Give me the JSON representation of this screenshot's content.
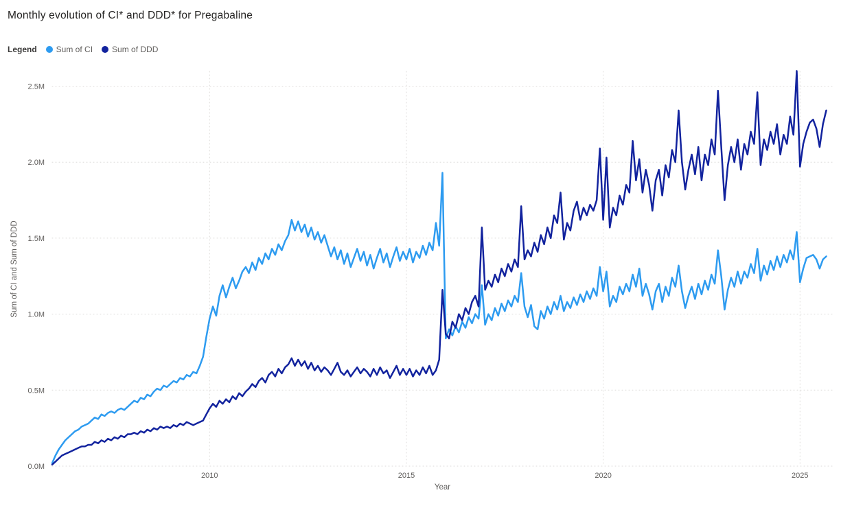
{
  "legend": {
    "title": "Legend"
  },
  "chart_data": {
    "type": "line",
    "title": "Monthly evolution of CI* and DDD* for Pregabaline",
    "xlabel": "Year",
    "ylabel": "Sum of CI and Sum of DDD",
    "value_unit": "millions",
    "x_start_year": 2006,
    "x_step_months": 1,
    "xlim": [
      2006,
      2025.9
    ],
    "ylim": [
      0,
      2.6
    ],
    "grid": "dotted",
    "legend_position": "top-left",
    "x_ticks": {
      "values": [
        2010,
        2015,
        2020,
        2025
      ],
      "labels": [
        "2010",
        "2015",
        "2020",
        "2025"
      ]
    },
    "y_ticks": {
      "values": [
        0,
        0.5,
        1.0,
        1.5,
        2.0,
        2.5
      ],
      "labels": [
        "0.0M",
        "0.5M",
        "1.0M",
        "1.5M",
        "2.0M",
        "2.5M"
      ]
    },
    "series": [
      {
        "name": "Sum of CI",
        "color": "#2D9BF0",
        "values": [
          0.02,
          0.07,
          0.11,
          0.14,
          0.17,
          0.19,
          0.21,
          0.23,
          0.24,
          0.26,
          0.27,
          0.28,
          0.3,
          0.32,
          0.31,
          0.34,
          0.33,
          0.35,
          0.36,
          0.35,
          0.37,
          0.38,
          0.37,
          0.39,
          0.41,
          0.43,
          0.42,
          0.45,
          0.44,
          0.47,
          0.46,
          0.49,
          0.51,
          0.5,
          0.53,
          0.52,
          0.54,
          0.56,
          0.55,
          0.58,
          0.57,
          0.6,
          0.59,
          0.62,
          0.61,
          0.66,
          0.72,
          0.85,
          0.97,
          1.05,
          0.99,
          1.12,
          1.19,
          1.11,
          1.18,
          1.24,
          1.17,
          1.22,
          1.28,
          1.31,
          1.27,
          1.34,
          1.29,
          1.37,
          1.33,
          1.4,
          1.36,
          1.43,
          1.39,
          1.46,
          1.42,
          1.48,
          1.52,
          1.62,
          1.55,
          1.61,
          1.54,
          1.59,
          1.51,
          1.57,
          1.49,
          1.54,
          1.47,
          1.52,
          1.45,
          1.38,
          1.44,
          1.36,
          1.42,
          1.33,
          1.4,
          1.31,
          1.37,
          1.43,
          1.35,
          1.41,
          1.32,
          1.39,
          1.3,
          1.37,
          1.43,
          1.34,
          1.4,
          1.31,
          1.38,
          1.44,
          1.35,
          1.41,
          1.36,
          1.43,
          1.34,
          1.41,
          1.37,
          1.45,
          1.39,
          1.47,
          1.42,
          1.6,
          1.45,
          1.93,
          0.84,
          0.9,
          0.86,
          0.92,
          0.88,
          0.95,
          0.91,
          0.98,
          0.94,
          1.0,
          0.97,
          1.19,
          0.93,
          1.0,
          0.96,
          1.04,
          0.99,
          1.07,
          1.02,
          1.09,
          1.05,
          1.12,
          1.08,
          1.27,
          1.05,
          0.98,
          1.06,
          0.92,
          0.9,
          1.02,
          0.97,
          1.05,
          1.0,
          1.08,
          1.03,
          1.12,
          1.02,
          1.08,
          1.04,
          1.11,
          1.06,
          1.13,
          1.08,
          1.15,
          1.1,
          1.17,
          1.12,
          1.31,
          1.15,
          1.28,
          1.05,
          1.12,
          1.08,
          1.18,
          1.13,
          1.2,
          1.15,
          1.26,
          1.18,
          1.3,
          1.12,
          1.2,
          1.13,
          1.03,
          1.15,
          1.2,
          1.08,
          1.18,
          1.12,
          1.24,
          1.18,
          1.32,
          1.15,
          1.04,
          1.12,
          1.18,
          1.1,
          1.2,
          1.13,
          1.22,
          1.16,
          1.26,
          1.2,
          1.42,
          1.25,
          1.03,
          1.16,
          1.24,
          1.18,
          1.28,
          1.2,
          1.28,
          1.24,
          1.33,
          1.27,
          1.43,
          1.22,
          1.32,
          1.26,
          1.35,
          1.29,
          1.38,
          1.31,
          1.39,
          1.34,
          1.42,
          1.36,
          1.54,
          1.21,
          1.3,
          1.37,
          1.38,
          1.39,
          1.36,
          1.3,
          1.36,
          1.38
        ]
      },
      {
        "name": "Sum of DDD",
        "color": "#12239E",
        "values": [
          0.01,
          0.03,
          0.05,
          0.07,
          0.08,
          0.09,
          0.1,
          0.11,
          0.12,
          0.13,
          0.13,
          0.14,
          0.14,
          0.16,
          0.15,
          0.17,
          0.16,
          0.18,
          0.17,
          0.19,
          0.18,
          0.2,
          0.19,
          0.21,
          0.21,
          0.22,
          0.21,
          0.23,
          0.22,
          0.24,
          0.23,
          0.25,
          0.24,
          0.26,
          0.25,
          0.26,
          0.25,
          0.27,
          0.26,
          0.28,
          0.27,
          0.29,
          0.28,
          0.27,
          0.28,
          0.29,
          0.3,
          0.34,
          0.38,
          0.41,
          0.39,
          0.43,
          0.41,
          0.44,
          0.42,
          0.46,
          0.44,
          0.48,
          0.46,
          0.49,
          0.51,
          0.54,
          0.52,
          0.56,
          0.58,
          0.55,
          0.6,
          0.62,
          0.59,
          0.64,
          0.61,
          0.65,
          0.67,
          0.71,
          0.66,
          0.7,
          0.66,
          0.69,
          0.64,
          0.68,
          0.63,
          0.66,
          0.62,
          0.65,
          0.63,
          0.6,
          0.64,
          0.68,
          0.62,
          0.6,
          0.63,
          0.59,
          0.62,
          0.65,
          0.61,
          0.64,
          0.62,
          0.59,
          0.64,
          0.6,
          0.65,
          0.61,
          0.63,
          0.58,
          0.62,
          0.66,
          0.6,
          0.64,
          0.6,
          0.64,
          0.59,
          0.63,
          0.6,
          0.65,
          0.61,
          0.66,
          0.6,
          0.63,
          0.7,
          1.16,
          0.87,
          0.84,
          0.95,
          0.91,
          1.0,
          0.96,
          1.04,
          1.0,
          1.08,
          1.12,
          1.05,
          1.57,
          1.16,
          1.22,
          1.18,
          1.26,
          1.21,
          1.3,
          1.25,
          1.33,
          1.28,
          1.36,
          1.31,
          1.71,
          1.36,
          1.42,
          1.38,
          1.47,
          1.41,
          1.52,
          1.46,
          1.57,
          1.5,
          1.65,
          1.6,
          1.8,
          1.49,
          1.6,
          1.55,
          1.68,
          1.74,
          1.62,
          1.7,
          1.65,
          1.72,
          1.68,
          1.75,
          2.09,
          1.62,
          2.03,
          1.57,
          1.7,
          1.65,
          1.78,
          1.72,
          1.85,
          1.8,
          2.14,
          1.88,
          2.02,
          1.8,
          1.95,
          1.85,
          1.68,
          1.88,
          1.95,
          1.78,
          1.98,
          1.9,
          2.08,
          2.0,
          2.34,
          2.0,
          1.82,
          1.95,
          2.05,
          1.92,
          2.1,
          1.88,
          2.05,
          1.98,
          2.15,
          2.05,
          2.47,
          2.1,
          1.75,
          1.98,
          2.1,
          2.0,
          2.15,
          1.95,
          2.12,
          2.05,
          2.2,
          2.12,
          2.46,
          1.98,
          2.15,
          2.08,
          2.2,
          2.12,
          2.25,
          2.05,
          2.18,
          2.12,
          2.3,
          2.18,
          2.6,
          1.97,
          2.12,
          2.2,
          2.26,
          2.28,
          2.22,
          2.1,
          2.25,
          2.34
        ]
      }
    ]
  }
}
